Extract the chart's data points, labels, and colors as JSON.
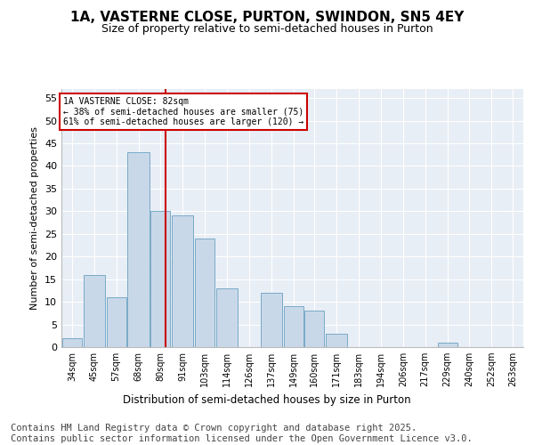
{
  "title_line1": "1A, VASTERNE CLOSE, PURTON, SWINDON, SN5 4EY",
  "title_line2": "Size of property relative to semi-detached houses in Purton",
  "xlabel": "Distribution of semi-detached houses by size in Purton",
  "ylabel": "Number of semi-detached properties",
  "bar_color": "#c8d8e8",
  "bar_edge_color": "#7aaac8",
  "background_color": "#e8eef5",
  "grid_color": "#ffffff",
  "categories": [
    "34sqm",
    "45sqm",
    "57sqm",
    "68sqm",
    "80sqm",
    "91sqm",
    "103sqm",
    "114sqm",
    "126sqm",
    "137sqm",
    "149sqm",
    "160sqm",
    "171sqm",
    "183sqm",
    "194sqm",
    "206sqm",
    "217sqm",
    "229sqm",
    "240sqm",
    "252sqm",
    "263sqm"
  ],
  "bin_edges": [
    28,
    39,
    51,
    62,
    74,
    85,
    97,
    108,
    120,
    131,
    143,
    154,
    165,
    177,
    188,
    200,
    211,
    223,
    234,
    246,
    257,
    268
  ],
  "values": [
    2,
    16,
    11,
    43,
    30,
    29,
    24,
    13,
    0,
    12,
    9,
    8,
    3,
    0,
    0,
    0,
    0,
    1,
    0,
    0,
    0
  ],
  "property_size": 82,
  "property_label": "1A VASTERNE CLOSE: 82sqm",
  "pct_smaller": 38,
  "pct_smaller_count": 75,
  "pct_larger": 61,
  "pct_larger_count": 120,
  "vline_color": "#cc0000",
  "annotation_box_color": "#cc0000",
  "ylim": [
    0,
    57
  ],
  "yticks": [
    0,
    5,
    10,
    15,
    20,
    25,
    30,
    35,
    40,
    45,
    50,
    55
  ],
  "footnote": "Contains HM Land Registry data © Crown copyright and database right 2025.\nContains public sector information licensed under the Open Government Licence v3.0.",
  "title_fontsize": 11,
  "subtitle_fontsize": 9,
  "footnote_fontsize": 7.5
}
